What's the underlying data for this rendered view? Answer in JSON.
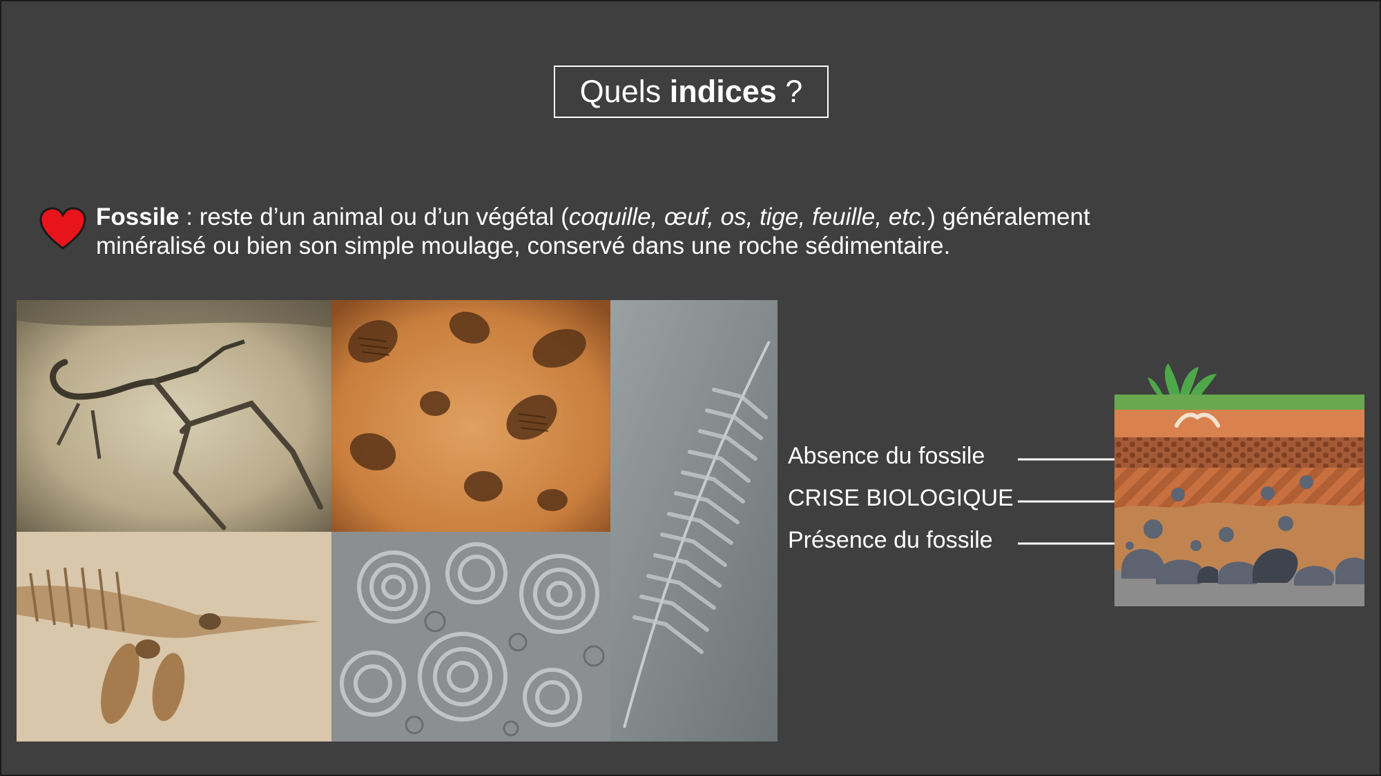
{
  "title": {
    "prefix": "Quels ",
    "bold": "indices",
    "suffix": " ?"
  },
  "definition": {
    "term": "Fossile",
    "text_before": " : reste d’un animal ou d’un végétal (",
    "examples": "coquille, œuf, os, tige, feuille, etc.",
    "text_after": ") généralement minéralisé ou bien son simple moulage, conservé dans une roche sédimentaire."
  },
  "photos": [
    {
      "subject": "pterosaur-fossil"
    },
    {
      "subject": "trilobite-fossils"
    },
    {
      "subject": "fern-fossil"
    },
    {
      "subject": "ichthyosaur-fossil"
    },
    {
      "subject": "ammonite-fossils"
    }
  ],
  "soil_labels": {
    "absence": "Absence du fossile",
    "crisis": "CRISE BIOLOGIQUE",
    "presence": "Présence du fossile"
  },
  "colors": {
    "background": "#3f3f3f",
    "heart": "#e8141b",
    "grass": "#6aa84f",
    "soil_top": "#d9814f",
    "soil_dotted": "#a45a36",
    "soil_striped": "#c8703f",
    "soil_lower": "#c18450",
    "bedrock": "#8c8c8c"
  }
}
